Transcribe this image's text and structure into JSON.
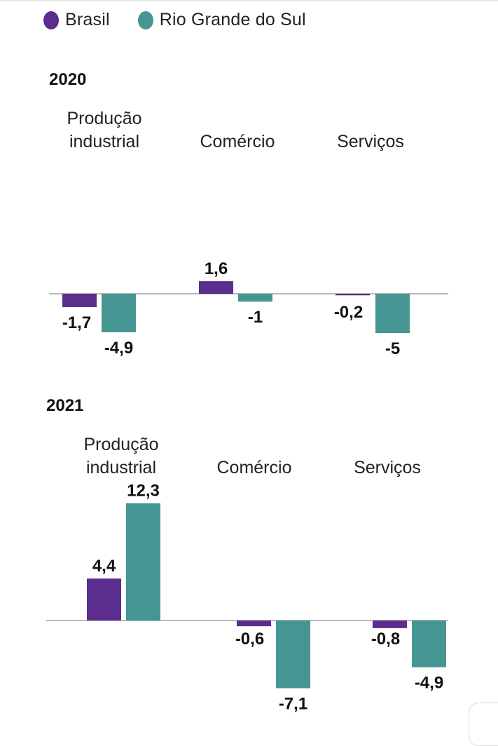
{
  "legend": [
    {
      "name": "Brasil",
      "color": "#5b2d8e"
    },
    {
      "name": "Rio Grande do Sul",
      "color": "#459693"
    }
  ],
  "chart_data": [
    {
      "type": "bar",
      "title": "2020",
      "categories": [
        [
          "Produção",
          "industrial"
        ],
        [
          "Comércio"
        ],
        [
          "Serviços"
        ]
      ],
      "series": [
        {
          "name": "Brasil",
          "color": "#5b2d8e",
          "values": [
            -1.7,
            1.6,
            -0.2
          ],
          "labels": [
            "-1,7",
            "1,6",
            "-0,2"
          ]
        },
        {
          "name": "Rio Grande do Sul",
          "color": "#459693",
          "values": [
            -4.9,
            -1,
            -5
          ],
          "labels": [
            "-4,9",
            "-1",
            "-5"
          ]
        }
      ],
      "xlabel": "",
      "ylabel": "",
      "grid": false,
      "baseline": 0
    },
    {
      "type": "bar",
      "title": "2021",
      "categories": [
        [
          "Produção",
          "industrial"
        ],
        [
          "Comércio"
        ],
        [
          "Serviços"
        ]
      ],
      "series": [
        {
          "name": "Brasil",
          "color": "#5b2d8e",
          "values": [
            4.4,
            -0.6,
            -0.8
          ],
          "labels": [
            "4,4",
            "-0,6",
            "-0,8"
          ]
        },
        {
          "name": "Rio Grande do Sul",
          "color": "#459693",
          "values": [
            12.3,
            -7.1,
            -4.9
          ],
          "labels": [
            "12,3",
            "-7,1",
            "-4,9"
          ]
        }
      ],
      "xlabel": "",
      "ylabel": "",
      "grid": false,
      "baseline": 0
    }
  ]
}
